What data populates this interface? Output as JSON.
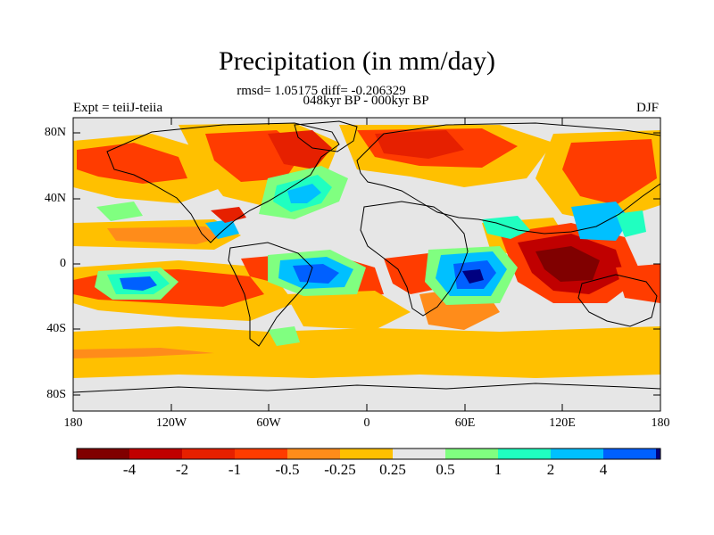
{
  "title": "Precipitation (in mm/day)",
  "stats": "rmsd= 1.05175 diff= -0.206329",
  "period": "048kyr BP - 000kyr BP",
  "experiment": "Expt = teiiJ-teiia",
  "season": "DJF",
  "lat_labels": [
    "80N",
    "40N",
    "0",
    "40S",
    "80S"
  ],
  "lon_labels": [
    "180",
    "120W",
    "60W",
    "0",
    "60E",
    "120E",
    "180"
  ],
  "colorbar": {
    "labels": [
      "-4",
      "-2",
      "-1",
      "-0.5",
      "-0.25",
      "0.25",
      "0.5",
      "1",
      "2",
      "4"
    ],
    "colors": [
      "#800000",
      "#c00000",
      "#e62000",
      "#ff3c00",
      "#ff8c1a",
      "#ffc000",
      "#e6e6e6",
      "#80ff80",
      "#20ffc0",
      "#00c0ff",
      "#0060ff",
      "#000080"
    ]
  },
  "colors": {
    "background": "#e6e6e6",
    "weak_dry": "#ffc000",
    "dry": "#ff8c1a",
    "drier": "#ff3c00",
    "very_dry": "#e62000",
    "extreme_dry": "#c00000",
    "weak_wet": "#80ff80",
    "wet": "#20ffc0",
    "wetter": "#00c0ff",
    "very_wet": "#0060ff",
    "extreme_wet": "#000080"
  }
}
